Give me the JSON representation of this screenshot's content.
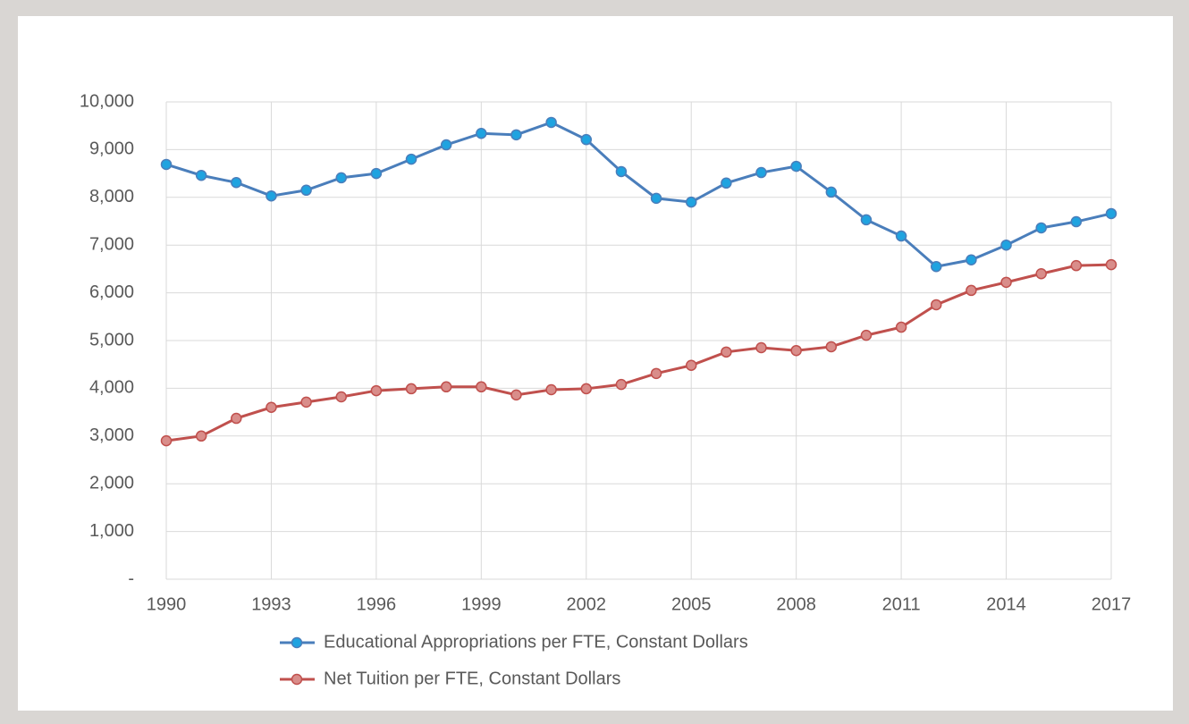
{
  "chart_data": {
    "type": "line",
    "x": [
      1990,
      1991,
      1992,
      1993,
      1994,
      1995,
      1996,
      1997,
      1998,
      1999,
      2000,
      2001,
      2002,
      2003,
      2004,
      2005,
      2006,
      2007,
      2008,
      2009,
      2010,
      2011,
      2012,
      2013,
      2014,
      2015,
      2016,
      2017
    ],
    "series": [
      {
        "name": "Educational Appropriations per FTE, Constant Dollars",
        "color": "#4a7ebb",
        "marker_color": "#1fa3e0",
        "values": [
          8690,
          8460,
          8310,
          8030,
          8150,
          8410,
          8500,
          8800,
          9100,
          9340,
          9310,
          9570,
          9210,
          8540,
          7980,
          7900,
          8300,
          8520,
          8650,
          8110,
          7530,
          7190,
          6550,
          6690,
          7000,
          7360,
          7490,
          7660
        ]
      },
      {
        "name": "Net Tuition per FTE, Constant Dollars",
        "color": "#c0504d",
        "marker_color": "#d98d8a",
        "values": [
          2900,
          3000,
          3370,
          3600,
          3710,
          3820,
          3950,
          3990,
          4030,
          4030,
          3860,
          3970,
          3990,
          4080,
          4310,
          4480,
          4760,
          4850,
          4790,
          4870,
          5110,
          5280,
          5750,
          6050,
          6220,
          6400,
          6570,
          6590
        ]
      }
    ],
    "xlim": [
      1990,
      2017
    ],
    "xticks": [
      1990,
      1993,
      1996,
      1999,
      2002,
      2005,
      2008,
      2011,
      2014,
      2017
    ],
    "ylim": [
      0,
      10000
    ],
    "yticks": [
      {
        "value": 0,
        "label": "-"
      },
      {
        "value": 1000,
        "label": "1,000"
      },
      {
        "value": 2000,
        "label": "2,000"
      },
      {
        "value": 3000,
        "label": "3,000"
      },
      {
        "value": 4000,
        "label": "4,000"
      },
      {
        "value": 5000,
        "label": "5,000"
      },
      {
        "value": 6000,
        "label": "6,000"
      },
      {
        "value": 7000,
        "label": "7,000"
      },
      {
        "value": 8000,
        "label": "8,000"
      },
      {
        "value": 9000,
        "label": "9,000"
      },
      {
        "value": 10000,
        "label": "10,000"
      }
    ],
    "grid": true,
    "legend": "bottom"
  }
}
